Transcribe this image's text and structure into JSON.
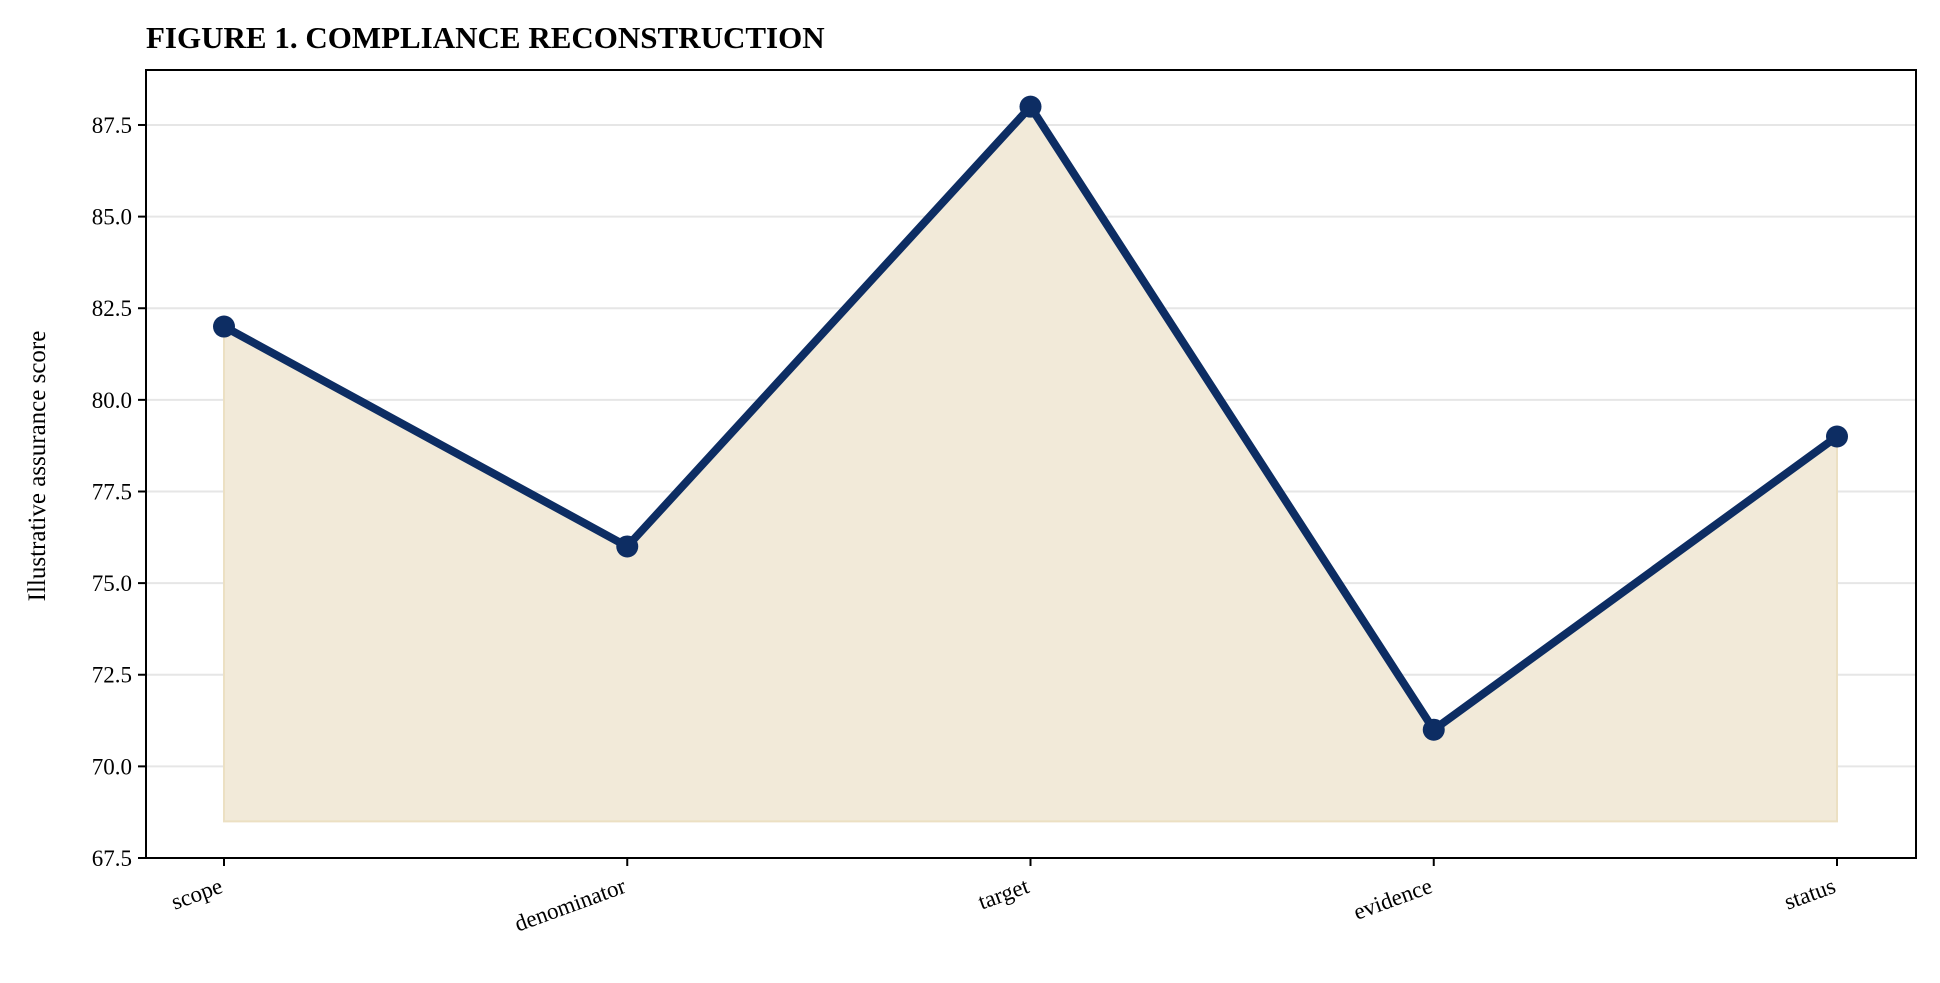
{
  "chart_data": {
    "type": "line",
    "title": "FIGURE 1. COMPLIANCE RECONSTRUCTION",
    "xlabel": "",
    "ylabel": "Illustrative assurance score",
    "categories": [
      "scope",
      "denominator",
      "target",
      "evidence",
      "status"
    ],
    "series": [
      {
        "values": [
          82,
          76,
          88,
          71,
          79
        ]
      }
    ],
    "ylim": [
      67.5,
      89
    ],
    "yticks": [
      "67.5",
      "70.0",
      "72.5",
      "75.0",
      "77.5",
      "80.0",
      "82.5",
      "85.0",
      "87.5"
    ],
    "fill_baseline": 68.5,
    "grid": "horizontal",
    "legend": "none",
    "colors": {
      "line": "#0d2d63",
      "fill": "#f2ead9",
      "fill_edge": "#ece0c3"
    }
  }
}
